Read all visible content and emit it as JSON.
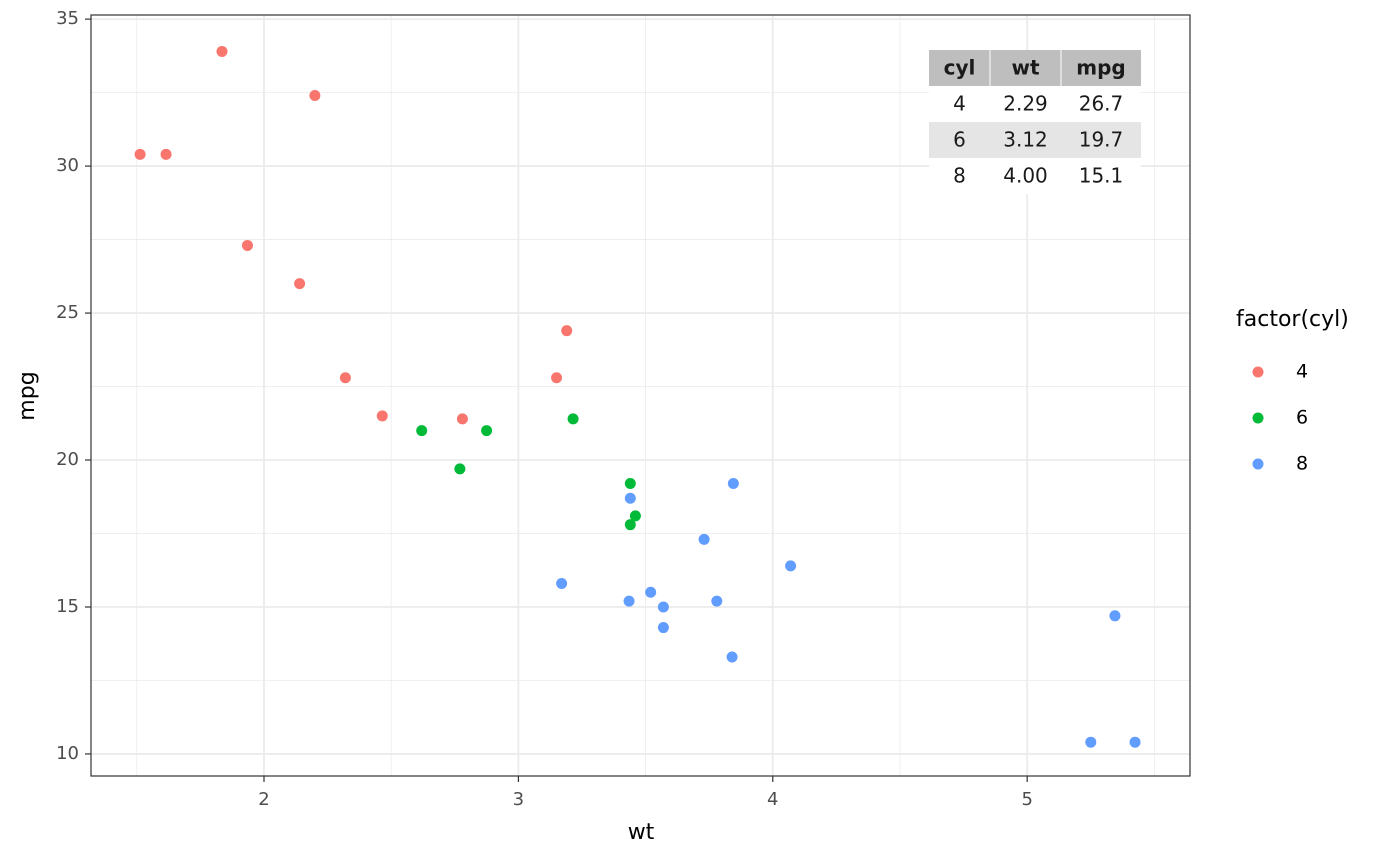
{
  "chart_data": {
    "type": "scatter",
    "x_label": "wt",
    "y_label": "mpg",
    "xlim": [
      1.32,
      5.64
    ],
    "ylim": [
      9.25,
      35.14
    ],
    "xticks": [
      2,
      3,
      4,
      5
    ],
    "yticks": [
      10,
      15,
      20,
      25,
      30,
      35
    ],
    "x_minor": [
      1.5,
      2.5,
      3.5,
      4.5,
      5.5
    ],
    "y_minor": [
      12.5,
      17.5,
      22.5,
      27.5,
      32.5
    ],
    "grid": true,
    "legend_title": "factor(cyl)",
    "legend_position": "right",
    "series": [
      {
        "name": "4",
        "color": "#F8766D",
        "x": [
          2.32,
          3.19,
          3.15,
          2.2,
          1.615,
          1.835,
          2.465,
          1.935,
          2.14,
          1.513,
          2.78
        ],
        "values": [
          22.8,
          24.4,
          22.8,
          32.4,
          30.4,
          33.9,
          21.5,
          27.3,
          26.0,
          30.4,
          21.4
        ]
      },
      {
        "name": "6",
        "color": "#00BA38",
        "x": [
          2.62,
          2.875,
          3.215,
          3.46,
          3.44,
          3.44,
          2.77
        ],
        "values": [
          21.0,
          21.0,
          21.4,
          18.1,
          19.2,
          17.8,
          19.7
        ]
      },
      {
        "name": "8",
        "color": "#619CFF",
        "x": [
          3.44,
          3.57,
          4.07,
          3.73,
          3.78,
          5.25,
          5.424,
          5.345,
          3.52,
          3.435,
          3.84,
          3.845,
          3.17,
          3.57
        ],
        "values": [
          18.7,
          14.3,
          16.4,
          17.3,
          15.2,
          10.4,
          10.4,
          14.7,
          15.5,
          15.2,
          13.3,
          19.2,
          15.8,
          15.0
        ]
      }
    ],
    "table": {
      "columns": [
        "cyl",
        "wt",
        "mpg"
      ],
      "rows": [
        [
          "4",
          "2.29",
          "26.7"
        ],
        [
          "6",
          "3.12",
          "19.7"
        ],
        [
          "8",
          "4.00",
          "15.1"
        ]
      ]
    }
  }
}
